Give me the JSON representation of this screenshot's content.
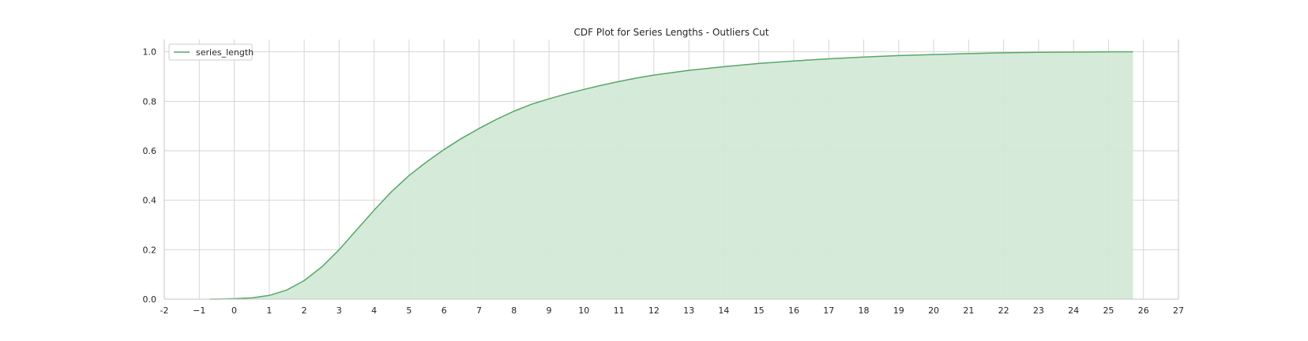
{
  "chart_data": {
    "type": "area",
    "title": "CDF Plot for Series Lengths - Outliers Cut",
    "xlabel": "",
    "ylabel": "",
    "xlim": [
      -2,
      27
    ],
    "ylim": [
      0.0,
      1.05
    ],
    "x_ticks": [
      "-2",
      "−1",
      "0",
      "1",
      "2",
      "3",
      "4",
      "5",
      "6",
      "7",
      "8",
      "9",
      "10",
      "11",
      "12",
      "13",
      "14",
      "15",
      "16",
      "17",
      "18",
      "19",
      "20",
      "21",
      "22",
      "23",
      "24",
      "25",
      "26",
      "27"
    ],
    "y_ticks": [
      "0.0",
      "0.2",
      "0.4",
      "0.6",
      "0.8",
      "1.0"
    ],
    "grid": true,
    "legend_position": "top-left",
    "series": [
      {
        "name": "series_length",
        "color": "#55a868",
        "fill_color": "#d4e9d8",
        "x": [
          -0.7,
          -0.5,
          0,
          0.5,
          1,
          1.5,
          2,
          2.5,
          3,
          3.5,
          4,
          4.5,
          5,
          5.5,
          6,
          6.5,
          7,
          7.5,
          8,
          8.5,
          9,
          9.5,
          10,
          10.5,
          11,
          11.5,
          12,
          13,
          14,
          15,
          16,
          17,
          18,
          19,
          20,
          21,
          22,
          23,
          24,
          25,
          25.7
        ],
        "y": [
          0.0,
          0.0,
          0.002,
          0.005,
          0.015,
          0.037,
          0.075,
          0.13,
          0.2,
          0.28,
          0.36,
          0.435,
          0.5,
          0.555,
          0.605,
          0.65,
          0.69,
          0.727,
          0.76,
          0.788,
          0.81,
          0.83,
          0.848,
          0.865,
          0.88,
          0.894,
          0.906,
          0.925,
          0.94,
          0.953,
          0.963,
          0.972,
          0.979,
          0.985,
          0.989,
          0.993,
          0.996,
          0.998,
          0.999,
          1.0,
          1.0
        ]
      }
    ]
  }
}
